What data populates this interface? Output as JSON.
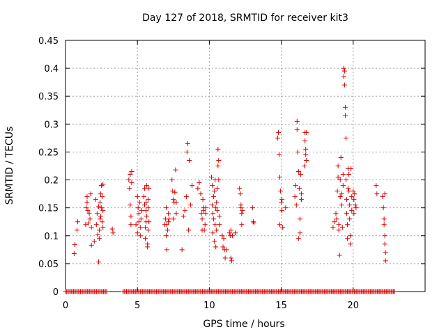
{
  "chart_data": {
    "type": "scatter",
    "title": "Day 127 of 2018, SRMTID for receiver kit3",
    "xlabel": "GPS time / hours",
    "ylabel": "SRMTID / TECUs",
    "xlim": [
      0,
      25
    ],
    "ylim": [
      0,
      0.45
    ],
    "xticks": [
      0,
      5,
      10,
      15,
      20
    ],
    "xtick_labels": [
      "0",
      "5",
      "10",
      "15",
      "20"
    ],
    "yticks": [
      0,
      0.05,
      0.1,
      0.15,
      0.2,
      0.25,
      0.3,
      0.35,
      0.4,
      0.45
    ],
    "ytick_labels": [
      "0",
      "0.05",
      "0.1",
      "0.15",
      "0.2",
      "0.25",
      "0.3",
      "0.35",
      "0.4",
      "0.45"
    ],
    "grid": true,
    "marker": "+",
    "series": [
      {
        "name": "SRMTID",
        "color": "#dd0000",
        "points": [
          [
            0.6,
            0.068
          ],
          [
            0.65,
            0.084
          ],
          [
            0.8,
            0.11
          ],
          [
            0.85,
            0.125
          ],
          [
            1.4,
            0.12
          ],
          [
            1.45,
            0.15
          ],
          [
            1.5,
            0.16
          ],
          [
            1.5,
            0.17
          ],
          [
            1.55,
            0.145
          ],
          [
            1.6,
            0.123
          ],
          [
            1.65,
            0.14
          ],
          [
            1.7,
            0.13
          ],
          [
            1.75,
            0.175
          ],
          [
            1.8,
            0.115
          ],
          [
            1.8,
            0.083
          ],
          [
            2.0,
            0.09
          ],
          [
            2.1,
            0.165
          ],
          [
            2.15,
            0.12
          ],
          [
            2.2,
            0.14
          ],
          [
            2.25,
            0.102
          ],
          [
            2.3,
            0.152
          ],
          [
            2.3,
            0.053
          ],
          [
            2.35,
            0.11
          ],
          [
            2.35,
            0.095
          ],
          [
            2.4,
            0.13
          ],
          [
            2.4,
            0.16
          ],
          [
            2.45,
            0.175
          ],
          [
            2.45,
            0.135
          ],
          [
            2.5,
            0.19
          ],
          [
            2.5,
            0.15
          ],
          [
            2.55,
            0.125
          ],
          [
            2.55,
            0.17
          ],
          [
            2.6,
            0.145
          ],
          [
            2.6,
            0.115
          ],
          [
            2.6,
            0.192
          ],
          [
            3.25,
            0.112
          ],
          [
            3.3,
            0.105
          ],
          [
            4.4,
            0.2
          ],
          [
            4.45,
            0.185
          ],
          [
            4.5,
            0.21
          ],
          [
            4.5,
            0.155
          ],
          [
            4.55,
            0.135
          ],
          [
            4.55,
            0.12
          ],
          [
            4.6,
            0.195
          ],
          [
            4.6,
            0.215
          ],
          [
            4.9,
            0.12
          ],
          [
            5.0,
            0.17
          ],
          [
            5.0,
            0.105
          ],
          [
            5.05,
            0.15
          ],
          [
            5.1,
            0.125
          ],
          [
            5.1,
            0.14
          ],
          [
            5.15,
            0.16
          ],
          [
            5.2,
            0.1
          ],
          [
            5.2,
            0.115
          ],
          [
            5.25,
            0.13
          ],
          [
            5.3,
            0.145
          ],
          [
            5.45,
            0.17
          ],
          [
            5.5,
            0.185
          ],
          [
            5.5,
            0.155
          ],
          [
            5.55,
            0.095
          ],
          [
            5.55,
            0.115
          ],
          [
            5.6,
            0.125
          ],
          [
            5.6,
            0.145
          ],
          [
            5.6,
            0.16
          ],
          [
            5.65,
            0.19
          ],
          [
            5.65,
            0.135
          ],
          [
            5.7,
            0.08
          ],
          [
            5.7,
            0.085
          ],
          [
            5.75,
            0.15
          ],
          [
            5.75,
            0.11
          ],
          [
            5.75,
            0.165
          ],
          [
            5.8,
            0.125
          ],
          [
            5.8,
            0.185
          ],
          [
            6.9,
            0.12
          ],
          [
            6.95,
            0.13
          ],
          [
            7.0,
            0.15
          ],
          [
            7.0,
            0.1
          ],
          [
            7.05,
            0.12
          ],
          [
            7.05,
            0.075
          ],
          [
            7.1,
            0.11
          ],
          [
            7.15,
            0.14
          ],
          [
            7.15,
            0.125
          ],
          [
            7.2,
            0.13
          ],
          [
            7.4,
            0.2
          ],
          [
            7.45,
            0.18
          ],
          [
            7.5,
            0.165
          ],
          [
            7.5,
            0.13
          ],
          [
            7.55,
            0.16
          ],
          [
            7.6,
            0.178
          ],
          [
            7.65,
            0.218
          ],
          [
            7.7,
            0.16
          ],
          [
            7.7,
            0.14
          ],
          [
            8.1,
            0.075
          ],
          [
            8.2,
            0.135
          ],
          [
            8.3,
            0.145
          ],
          [
            8.4,
            0.17
          ],
          [
            8.45,
            0.25
          ],
          [
            8.5,
            0.265
          ],
          [
            8.55,
            0.11
          ],
          [
            8.6,
            0.235
          ],
          [
            8.7,
            0.155
          ],
          [
            8.8,
            0.19
          ],
          [
            9.2,
            0.185
          ],
          [
            9.3,
            0.195
          ],
          [
            9.4,
            0.175
          ],
          [
            9.45,
            0.14
          ],
          [
            9.5,
            0.13
          ],
          [
            9.5,
            0.11
          ],
          [
            9.55,
            0.165
          ],
          [
            9.6,
            0.145
          ],
          [
            9.6,
            0.15
          ],
          [
            9.65,
            0.11
          ],
          [
            9.7,
            0.12
          ],
          [
            9.75,
            0.14
          ],
          [
            9.75,
            0.15
          ],
          [
            10.15,
            0.205
          ],
          [
            10.2,
            0.19
          ],
          [
            10.2,
            0.155
          ],
          [
            10.25,
            0.14
          ],
          [
            10.25,
            0.105
          ],
          [
            10.3,
            0.13
          ],
          [
            10.3,
            0.17
          ],
          [
            10.35,
            0.18
          ],
          [
            10.35,
            0.09
          ],
          [
            10.4,
            0.2
          ],
          [
            10.4,
            0.12
          ],
          [
            10.45,
            0.08
          ],
          [
            10.45,
            0.15
          ],
          [
            10.5,
            0.16
          ],
          [
            10.5,
            0.11
          ],
          [
            10.55,
            0.185
          ],
          [
            10.55,
            0.145
          ],
          [
            10.6,
            0.225
          ],
          [
            10.6,
            0.255
          ],
          [
            10.65,
            0.235
          ],
          [
            10.65,
            0.2
          ],
          [
            10.7,
            0.12
          ],
          [
            10.7,
            0.135
          ],
          [
            10.9,
            0.1
          ],
          [
            10.95,
            0.08
          ],
          [
            11.0,
            0.095
          ],
          [
            11.05,
            0.075
          ],
          [
            11.1,
            0.06
          ],
          [
            11.2,
            0.075
          ],
          [
            11.4,
            0.105
          ],
          [
            11.45,
            0.1
          ],
          [
            11.5,
            0.11
          ],
          [
            11.5,
            0.06
          ],
          [
            11.55,
            0.055
          ],
          [
            11.6,
            0.1
          ],
          [
            11.8,
            0.105
          ],
          [
            12.1,
            0.185
          ],
          [
            12.15,
            0.175
          ],
          [
            12.2,
            0.15
          ],
          [
            12.2,
            0.155
          ],
          [
            12.25,
            0.14
          ],
          [
            12.25,
            0.12
          ],
          [
            12.3,
            0.145
          ],
          [
            13.0,
            0.15
          ],
          [
            13.05,
            0.125
          ],
          [
            13.1,
            0.123
          ],
          [
            14.75,
            0.275
          ],
          [
            14.8,
            0.285
          ],
          [
            14.85,
            0.245
          ],
          [
            14.9,
            0.205
          ],
          [
            14.9,
            0.12
          ],
          [
            14.95,
            0.18
          ],
          [
            15.0,
            0.16
          ],
          [
            15.05,
            0.145
          ],
          [
            15.05,
            0.165
          ],
          [
            15.1,
            0.115
          ],
          [
            15.3,
            0.15
          ],
          [
            15.95,
            0.17
          ],
          [
            16.0,
            0.19
          ],
          [
            16.05,
            0.155
          ],
          [
            16.1,
            0.305
          ],
          [
            16.1,
            0.29
          ],
          [
            16.15,
            0.25
          ],
          [
            16.2,
            0.215
          ],
          [
            16.2,
            0.095
          ],
          [
            16.25,
            0.185
          ],
          [
            16.3,
            0.13
          ],
          [
            16.3,
            0.105
          ],
          [
            16.35,
            0.21
          ],
          [
            16.4,
            0.175
          ],
          [
            16.4,
            0.165
          ],
          [
            16.6,
            0.225
          ],
          [
            16.65,
            0.285
          ],
          [
            16.65,
            0.27
          ],
          [
            16.7,
            0.255
          ],
          [
            16.7,
            0.245
          ],
          [
            16.75,
            0.235
          ],
          [
            16.75,
            0.285
          ],
          [
            18.6,
            0.115
          ],
          [
            18.7,
            0.125
          ],
          [
            18.8,
            0.14
          ],
          [
            18.85,
            0.13
          ],
          [
            18.9,
            0.18
          ],
          [
            18.95,
            0.205
          ],
          [
            18.95,
            0.225
          ],
          [
            19.0,
            0.12
          ],
          [
            19.0,
            0.11
          ],
          [
            19.05,
            0.065
          ],
          [
            19.1,
            0.2
          ],
          [
            19.1,
            0.17
          ],
          [
            19.15,
            0.24
          ],
          [
            19.2,
            0.175
          ],
          [
            19.2,
            0.155
          ],
          [
            19.25,
            0.115
          ],
          [
            19.3,
            0.21
          ],
          [
            19.3,
            0.19
          ],
          [
            19.35,
            0.4
          ],
          [
            19.35,
            0.385
          ],
          [
            19.4,
            0.37
          ],
          [
            19.4,
            0.395
          ],
          [
            19.45,
            0.33
          ],
          [
            19.45,
            0.315
          ],
          [
            19.5,
            0.275
          ],
          [
            19.5,
            0.2
          ],
          [
            19.55,
            0.165
          ],
          [
            19.55,
            0.14
          ],
          [
            19.6,
            0.12
          ],
          [
            19.6,
            0.095
          ],
          [
            19.65,
            0.22
          ],
          [
            19.65,
            0.185
          ],
          [
            19.7,
            0.21
          ],
          [
            19.7,
            0.18
          ],
          [
            19.75,
            0.155
          ],
          [
            19.75,
            0.13
          ],
          [
            19.8,
            0.1
          ],
          [
            19.8,
            0.085
          ],
          [
            19.85,
            0.22
          ],
          [
            19.9,
            0.17
          ],
          [
            19.9,
            0.145
          ],
          [
            20.0,
            0.18
          ],
          [
            20.05,
            0.165
          ],
          [
            20.05,
            0.14
          ],
          [
            20.1,
            0.175
          ],
          [
            20.15,
            0.155
          ],
          [
            20.2,
            0.15
          ],
          [
            21.6,
            0.19
          ],
          [
            21.65,
            0.175
          ],
          [
            22.05,
            0.17
          ],
          [
            22.1,
            0.15
          ],
          [
            22.15,
            0.13
          ],
          [
            22.15,
            0.12
          ],
          [
            22.2,
            0.175
          ],
          [
            22.2,
            0.1
          ],
          [
            22.2,
            0.085
          ],
          [
            22.25,
            0.07
          ],
          [
            22.25,
            0.055
          ]
        ],
        "baseline_zero_ranges": [
          [
            0.0,
            2.9
          ],
          [
            4.0,
            22.9
          ]
        ]
      }
    ]
  }
}
